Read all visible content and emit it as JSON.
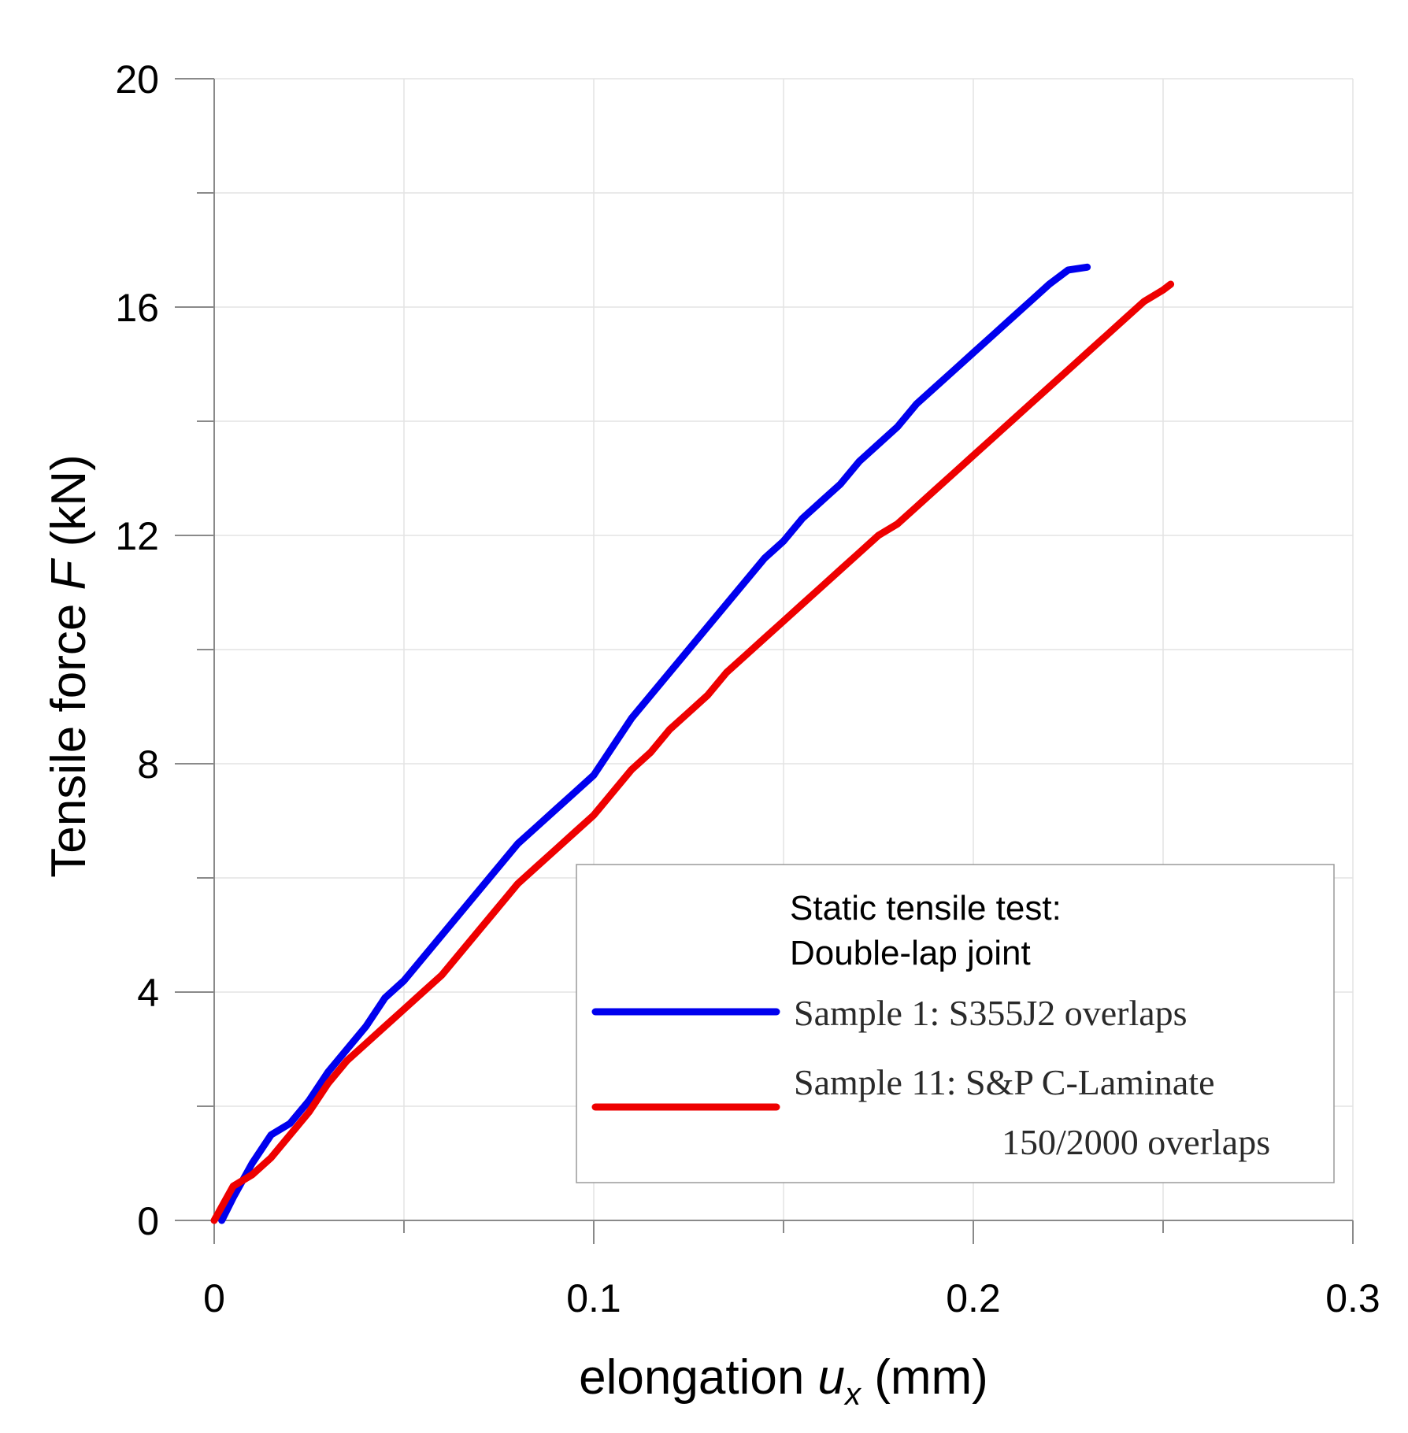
{
  "chart_data": {
    "type": "line",
    "title": "",
    "xlabel": {
      "prefix": "elongation ",
      "var": "u",
      "sub": "x",
      "unit": " (mm)"
    },
    "ylabel": {
      "prefix": "Tensile force ",
      "var": "F",
      "unit": " (kN)"
    },
    "xlim": [
      0,
      0.3
    ],
    "ylim": [
      0,
      20
    ],
    "xticks": [
      0,
      0.1,
      0.2,
      0.3
    ],
    "xtick_labels": [
      "0",
      "0.1",
      "0.2",
      "0.3"
    ],
    "yticks": [
      0,
      4,
      8,
      12,
      16,
      20
    ],
    "ytick_labels": [
      "0",
      "4",
      "8",
      "12",
      "16",
      "20"
    ],
    "minor_xticks": [
      0.05,
      0.15,
      0.25
    ],
    "minor_yticks": [
      2,
      6,
      10,
      14,
      18
    ],
    "grid": true,
    "legend": {
      "placement": "bottom-right",
      "title_lines": [
        "Static tensile test:",
        "Double-lap joint"
      ]
    },
    "series": [
      {
        "name": "Sample 1: S355J2 overlaps",
        "label_lines": [
          "Sample 1: S355J2 overlaps"
        ],
        "color": "#0000ee",
        "x": [
          0.002,
          0.005,
          0.01,
          0.015,
          0.02,
          0.025,
          0.03,
          0.035,
          0.04,
          0.045,
          0.05,
          0.055,
          0.06,
          0.065,
          0.07,
          0.075,
          0.08,
          0.085,
          0.09,
          0.095,
          0.1,
          0.105,
          0.11,
          0.115,
          0.12,
          0.125,
          0.13,
          0.135,
          0.14,
          0.145,
          0.15,
          0.155,
          0.16,
          0.165,
          0.17,
          0.175,
          0.18,
          0.185,
          0.19,
          0.195,
          0.2,
          0.205,
          0.21,
          0.215,
          0.22,
          0.225,
          0.23
        ],
        "y": [
          0.0,
          0.4,
          1.0,
          1.5,
          1.7,
          2.1,
          2.6,
          3.0,
          3.4,
          3.9,
          4.2,
          4.6,
          5.0,
          5.4,
          5.8,
          6.2,
          6.6,
          6.9,
          7.2,
          7.5,
          7.8,
          8.3,
          8.8,
          9.2,
          9.6,
          10.0,
          10.4,
          10.8,
          11.2,
          11.6,
          11.9,
          12.3,
          12.6,
          12.9,
          13.3,
          13.6,
          13.9,
          14.3,
          14.6,
          14.9,
          15.2,
          15.5,
          15.8,
          16.1,
          16.4,
          16.65,
          16.7
        ]
      },
      {
        "name": "Sample 11: S&P C-Laminate 150/2000 overlaps",
        "label_lines": [
          "Sample 11: S&P C-Laminate",
          "150/2000 overlaps"
        ],
        "color": "#ee0000",
        "x": [
          0.0,
          0.005,
          0.01,
          0.015,
          0.02,
          0.025,
          0.03,
          0.035,
          0.04,
          0.045,
          0.05,
          0.055,
          0.06,
          0.065,
          0.07,
          0.075,
          0.08,
          0.085,
          0.09,
          0.095,
          0.1,
          0.105,
          0.11,
          0.115,
          0.12,
          0.125,
          0.13,
          0.135,
          0.14,
          0.145,
          0.15,
          0.155,
          0.16,
          0.165,
          0.17,
          0.175,
          0.18,
          0.185,
          0.19,
          0.195,
          0.2,
          0.205,
          0.21,
          0.215,
          0.22,
          0.225,
          0.23,
          0.235,
          0.24,
          0.245,
          0.25,
          0.252
        ],
        "y": [
          0.0,
          0.6,
          0.8,
          1.1,
          1.5,
          1.9,
          2.4,
          2.8,
          3.1,
          3.4,
          3.7,
          4.0,
          4.3,
          4.7,
          5.1,
          5.5,
          5.9,
          6.2,
          6.5,
          6.8,
          7.1,
          7.5,
          7.9,
          8.2,
          8.6,
          8.9,
          9.2,
          9.6,
          9.9,
          10.2,
          10.5,
          10.8,
          11.1,
          11.4,
          11.7,
          12.0,
          12.2,
          12.5,
          12.8,
          13.1,
          13.4,
          13.7,
          14.0,
          14.3,
          14.6,
          14.9,
          15.2,
          15.5,
          15.8,
          16.1,
          16.3,
          16.4
        ]
      }
    ]
  }
}
